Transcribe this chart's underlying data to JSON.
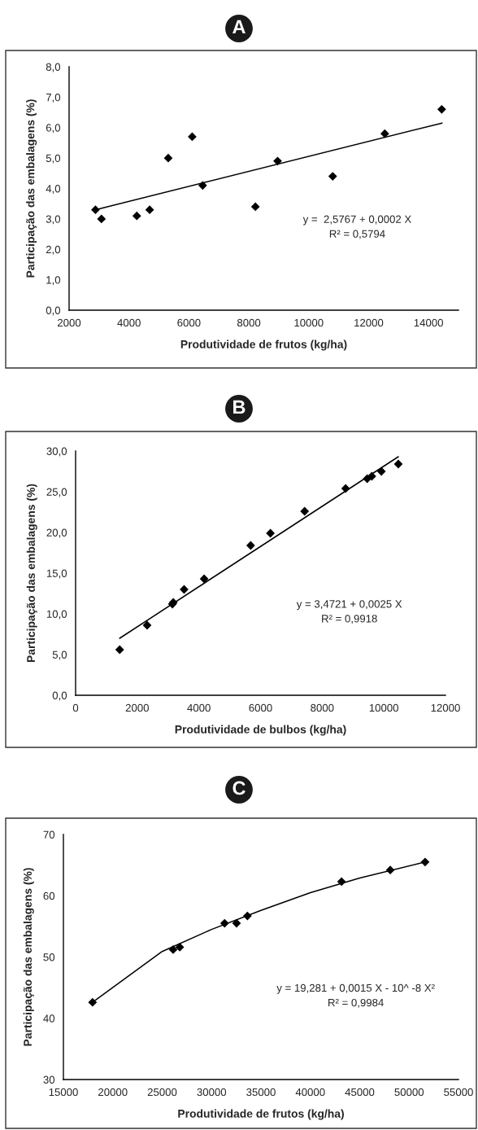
{
  "chart_data": [
    {
      "type": "scatter",
      "title": "A",
      "xlabel": "Produtividade de frutos (kg/ha)",
      "ylabel": "Participação das embalagens (%)",
      "xlim": [
        2000,
        15000
      ],
      "xticks": [
        2000,
        4000,
        6000,
        8000,
        10000,
        12000,
        14000
      ],
      "ylim": [
        0,
        8
      ],
      "yticks": [
        {
          "value": 0,
          "label": "0,0"
        },
        {
          "value": 1,
          "label": "1,0"
        },
        {
          "value": 2,
          "label": "2,0"
        },
        {
          "value": 3,
          "label": "3,0"
        },
        {
          "value": 4,
          "label": "4,0"
        },
        {
          "value": 5,
          "label": "5,0"
        },
        {
          "value": 6,
          "label": "6,0"
        },
        {
          "value": 7,
          "label": "7,0"
        },
        {
          "value": 8,
          "label": "8,0"
        }
      ],
      "marker": "diamond",
      "grid": false,
      "series": [
        {
          "color": "#000000",
          "x": [
            2880,
            3080,
            4260,
            4690,
            5310,
            6110,
            6460,
            8220,
            8960,
            10800,
            12540,
            14440
          ],
          "values": [
            3.3,
            3.0,
            3.1,
            3.3,
            5.0,
            5.7,
            4.1,
            3.4,
            4.9,
            4.4,
            5.8,
            6.6
          ]
        },
        {
          "type": "line",
          "marker": "none",
          "color": "#000000",
          "x": [
            2880,
            14450
          ],
          "values": [
            3.3,
            6.15
          ]
        }
      ],
      "annotations": [
        "y =  2,5767 + 0,0002 X",
        "R² = 0,5794"
      ]
    },
    {
      "type": "scatter",
      "title": "B",
      "xlabel": "Produtividade de bulbos (kg/ha)",
      "ylabel": "Participação das embalagens (%)",
      "xlim": [
        0,
        12000
      ],
      "xticks": [
        0,
        2000,
        4000,
        6000,
        8000,
        10000,
        12000
      ],
      "ylim": [
        0,
        30
      ],
      "yticks": [
        {
          "value": 0,
          "label": "0,0"
        },
        {
          "value": 5,
          "label": "5,0"
        },
        {
          "value": 10,
          "label": "10,0"
        },
        {
          "value": 15,
          "label": "15,0"
        },
        {
          "value": 20,
          "label": "20,0"
        },
        {
          "value": 25,
          "label": "25,0"
        },
        {
          "value": 30,
          "label": "30,0"
        }
      ],
      "marker": "diamond",
      "grid": false,
      "series": [
        {
          "color": "#000000",
          "x": [
            1430,
            2320,
            3140,
            3170,
            3520,
            4170,
            5680,
            6320,
            7430,
            8760,
            9460,
            9610,
            9920,
            10470
          ],
          "values": [
            5.6,
            8.6,
            11.2,
            11.4,
            13.0,
            14.3,
            18.4,
            19.9,
            22.6,
            25.4,
            26.6,
            26.9,
            27.5,
            28.4
          ]
        },
        {
          "type": "line",
          "marker": "none",
          "color": "#000000",
          "x": [
            1430,
            10470
          ],
          "values": [
            7.0,
            29.3
          ]
        }
      ],
      "annotations": [
        "y = 3,4721 + 0,0025 X",
        "R² = 0,9918"
      ]
    },
    {
      "type": "scatter",
      "title": "C",
      "xlabel": "Produtividade de frutos (kg/ha)",
      "ylabel": "Participação das embalagens (%)",
      "xlim": [
        15000,
        55000
      ],
      "xticks": [
        15000,
        20000,
        25000,
        30000,
        35000,
        40000,
        45000,
        50000,
        55000
      ],
      "ylim": [
        30,
        70
      ],
      "yticks": [
        30,
        40,
        50,
        60,
        70
      ],
      "marker": "diamond",
      "grid": false,
      "series": [
        {
          "color": "#000000",
          "x": [
            17950,
            26110,
            26780,
            31320,
            32530,
            33630,
            43160,
            48090,
            51620
          ],
          "values": [
            42.6,
            51.2,
            51.6,
            55.5,
            55.5,
            56.7,
            62.3,
            64.2,
            65.5
          ]
        },
        {
          "type": "line",
          "marker": "none",
          "color": "#000000",
          "x": [
            17950,
            25000,
            30000,
            35000,
            40000,
            45000,
            51620
          ],
          "values": [
            42.6,
            50.9,
            54.5,
            57.6,
            60.5,
            62.9,
            65.5
          ]
        }
      ],
      "annotations": [
        "y = 19,281 + 0,0015 X - 10^ -8 X²",
        "R² = 0,9984"
      ]
    }
  ]
}
